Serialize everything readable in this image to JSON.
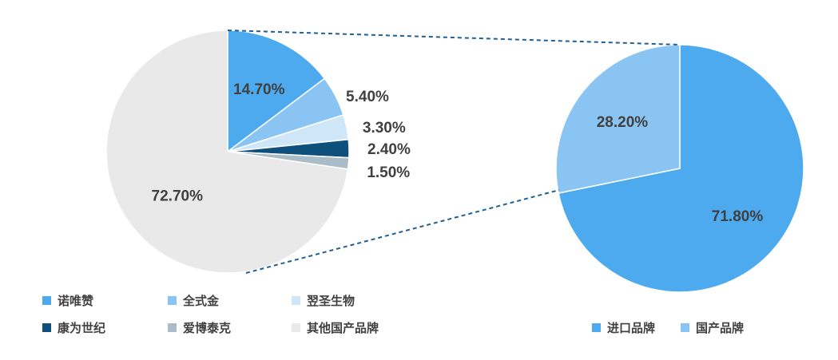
{
  "chart_data": [
    {
      "type": "pie",
      "categories": [
        "诺唯赞",
        "全式金",
        "翌圣生物",
        "康为世纪",
        "爱博泰克",
        "其他国产品牌"
      ],
      "values": [
        14.7,
        5.4,
        3.3,
        2.4,
        1.5,
        72.7
      ],
      "data_labels": [
        "14.70%",
        "5.40%",
        "3.30%",
        "2.40%",
        "1.50%",
        "72.70%"
      ],
      "colors": [
        "#4eaaee",
        "#8ac4f2",
        "#cfe6f8",
        "#0e4f7c",
        "#a9bcc7",
        "#e9e9e9"
      ],
      "legend_position": "bottom"
    },
    {
      "type": "pie",
      "categories": [
        "进口品牌",
        "国产品牌"
      ],
      "values": [
        71.8,
        28.2
      ],
      "data_labels": [
        "71.80%",
        "28.20%"
      ],
      "colors": [
        "#4eaaee",
        "#8ac4f2"
      ],
      "legend_position": "bottom"
    }
  ],
  "connector_color": "#1f5f94"
}
